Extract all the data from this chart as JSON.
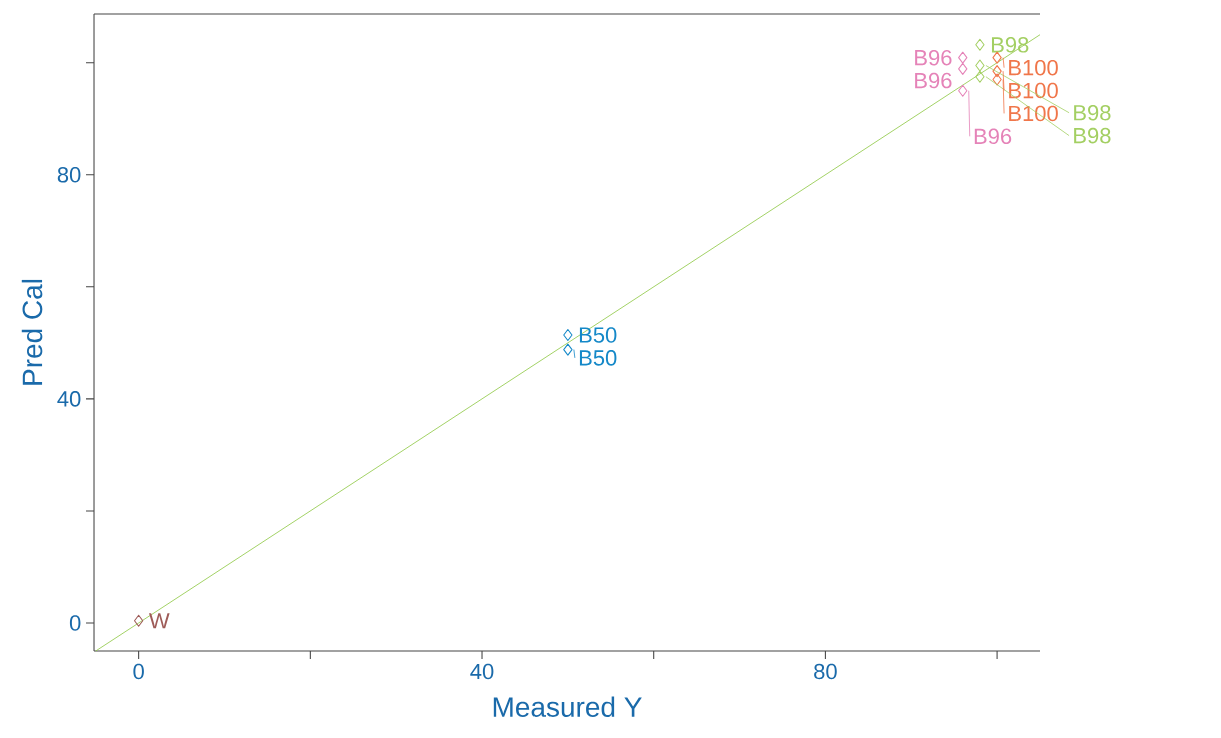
{
  "chart_data": {
    "type": "scatter",
    "xlabel": "Measured Y",
    "ylabel": "Pred Cal",
    "marker": "diamond",
    "xlim": [
      -5.2,
      105
    ],
    "ylim": [
      -5,
      108.7
    ],
    "xticks": [
      0,
      {
        "value": 20,
        "label": null
      },
      40,
      {
        "value": 60,
        "label": null
      },
      80,
      {
        "value": 100,
        "label": null
      }
    ],
    "yticks": [
      0,
      {
        "value": 20,
        "label": null
      },
      40,
      {
        "value": 60,
        "label": null
      },
      80,
      {
        "value": 100,
        "label": null
      }
    ],
    "series": [
      {
        "type": "line",
        "marker": "none",
        "color": "#8cc63f",
        "x": [
          -5,
          105
        ],
        "values": [
          -5,
          105
        ]
      },
      {
        "color": "#9e5b58",
        "x": [
          0
        ],
        "values": [
          0.4
        ]
      },
      {
        "color": "#1488c8",
        "x": [
          50,
          50
        ],
        "values": [
          51.4,
          48.8
        ]
      },
      {
        "color": "#e583b8",
        "x": [
          96,
          96,
          96
        ],
        "values": [
          100.9,
          98.9,
          95.0
        ]
      },
      {
        "color": "#a3cf62",
        "x": [
          98,
          98,
          98
        ],
        "values": [
          103.2,
          99.5,
          97.5
        ]
      },
      {
        "color": "#f0764a",
        "x": [
          100,
          100,
          100
        ],
        "values": [
          100.9,
          98.5,
          97.0
        ]
      }
    ],
    "annotations": [
      {
        "text": "W",
        "x": 0,
        "y": 0.4
      },
      {
        "text": "B50",
        "x": 50,
        "y": 51.4
      },
      {
        "text": "B50",
        "x": 50,
        "y": 48.8
      },
      {
        "text": "B96",
        "x": 96,
        "y": 100.9
      },
      {
        "text": "B96",
        "x": 96,
        "y": 98.9
      },
      {
        "text": "B96",
        "x": 96,
        "y": 95.0
      },
      {
        "text": "B98",
        "x": 98,
        "y": 103.2
      },
      {
        "text": "B98",
        "x": 98,
        "y": 99.5
      },
      {
        "text": "B98",
        "x": 98,
        "y": 97.5
      },
      {
        "text": "B100",
        "x": 100,
        "y": 100.9
      },
      {
        "text": "B100",
        "x": 100,
        "y": 98.5
      },
      {
        "text": "B100",
        "x": 100,
        "y": 97.0
      }
    ]
  }
}
